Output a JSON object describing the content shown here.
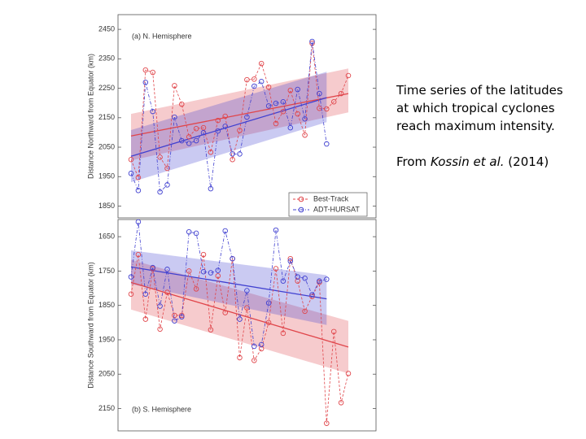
{
  "slide": {
    "caption": "Time series of the latitudes at which tropical cyclones reach maximum intensity.",
    "source_prefix": "From",
    "source_authors": "Kossin et al.",
    "source_year": "(2014)"
  },
  "chart_data": [
    {
      "type": "line",
      "panel_label": "(a) N. Hemisphere",
      "ylabel": "Distance Northward from Equator (km)",
      "ylim": [
        1810,
        2500
      ],
      "inverted": false,
      "yticks": [
        1850,
        1950,
        2050,
        2150,
        2250,
        2350,
        2450
      ],
      "legend": "lower right",
      "grid": false,
      "categories": [
        null,
        null,
        null,
        null,
        null,
        null,
        null,
        null,
        null,
        null,
        null,
        null,
        null,
        null,
        null,
        null,
        null,
        null,
        null,
        null,
        null,
        null,
        null,
        null,
        null,
        null,
        null,
        null,
        null,
        null,
        null
      ],
      "series": [
        {
          "name": "Best-Track",
          "color": "#e0454a",
          "values": [
            2008,
            1947,
            2312,
            2304,
            2016,
            1978,
            2259,
            2196,
            2085,
            2113,
            2116,
            2033,
            2141,
            2155,
            2008,
            2107,
            2279,
            2281,
            2334,
            2254,
            2130,
            2171,
            2243,
            2163,
            2091,
            2403,
            2182,
            2180,
            2204,
            2232,
            2293
          ],
          "trend": [
            2088,
            2232
          ],
          "band_start": [
            2005,
            2163
          ],
          "band_end": [
            2168,
            2317
          ]
        },
        {
          "name": "ADT-HURSAT",
          "color": "#4040d0",
          "values": [
            1961,
            1903,
            2270,
            2171,
            1898,
            1922,
            2152,
            2072,
            2063,
            2072,
            2099,
            1909,
            2105,
            2121,
            2027,
            2027,
            2152,
            2257,
            2273,
            2190,
            2199,
            2204,
            2116,
            2246,
            2146,
            2409,
            2232,
            2061,
            null,
            null,
            null
          ],
          "trend": [
            2019,
            2218
          ],
          "band_start": [
            1931,
            2108
          ],
          "band_end": [
            2135,
            2306
          ]
        }
      ]
    },
    {
      "type": "line",
      "panel_label": "(b) S. Hemisphere",
      "ylabel": "Distance Southward from Equator (km)",
      "ylim": [
        1600,
        2215
      ],
      "inverted": true,
      "yticks": [
        1650,
        1750,
        1850,
        1950,
        2050,
        2150
      ],
      "grid": false,
      "categories": [
        null,
        null,
        null,
        null,
        null,
        null,
        null,
        null,
        null,
        null,
        null,
        null,
        null,
        null,
        null,
        null,
        null,
        null,
        null,
        null,
        null,
        null,
        null,
        null,
        null,
        null,
        null,
        null,
        null,
        null,
        null
      ],
      "series": [
        {
          "color": "#e0454a",
          "values": [
            1817,
            1702,
            1890,
            1743,
            1919,
            1812,
            1879,
            1879,
            1750,
            1802,
            1702,
            1921,
            1764,
            1871,
            1714,
            2002,
            1857,
            2010,
            1976,
            1900,
            1743,
            1931,
            1714,
            1779,
            1867,
            1824,
            1783,
            2193,
            1926,
            2133,
            2048
          ],
          "trend": [
            1783,
            1971
          ],
          "band_start": [
            1717,
            1862
          ],
          "band_end": [
            1895,
            2048
          ]
        },
        {
          "color": "#4040d0",
          "values": [
            1767,
            1607,
            1817,
            1740,
            1852,
            1745,
            1895,
            1883,
            1636,
            1640,
            1752,
            1755,
            1748,
            1633,
            1714,
            1890,
            1807,
            1969,
            1964,
            1843,
            1631,
            1779,
            1721,
            1767,
            1771,
            1819,
            1779,
            1774,
            null,
            null,
            null
          ],
          "trend": [
            1738,
            1831
          ],
          "band_start": [
            1690,
            1788
          ],
          "band_end": [
            1762,
            1907
          ]
        }
      ]
    }
  ]
}
